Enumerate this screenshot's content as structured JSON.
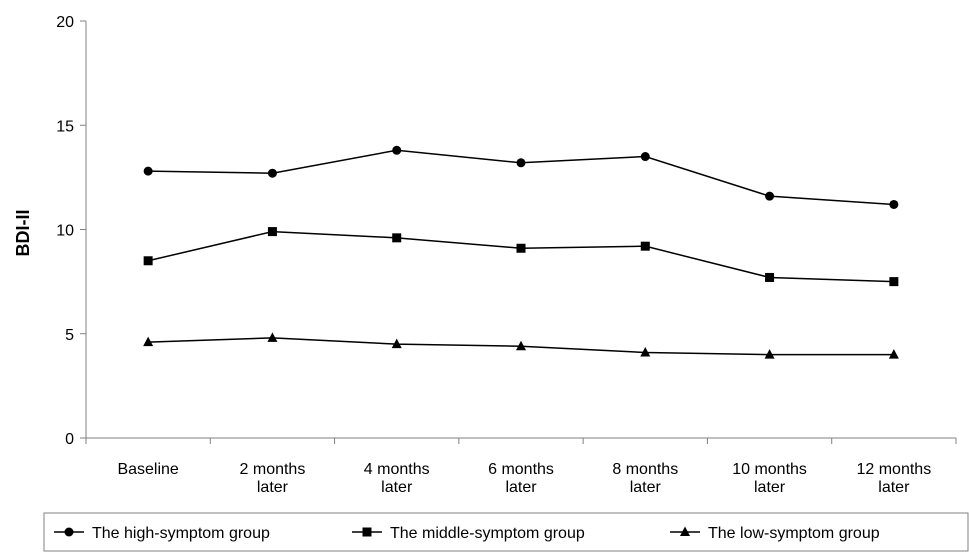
{
  "chart_data": {
    "type": "line",
    "title": "",
    "xlabel": "",
    "ylabel": "BDI-II",
    "ylim": [
      0,
      20
    ],
    "yticks": [
      "0",
      "5",
      "10",
      "15",
      "20"
    ],
    "categories": [
      [
        "Baseline"
      ],
      [
        "2 months",
        "later"
      ],
      [
        "4 months",
        "later"
      ],
      [
        "6 months",
        "later"
      ],
      [
        "8 months",
        "later"
      ],
      [
        "10 months",
        "later"
      ],
      [
        "12 months",
        "later"
      ]
    ],
    "grid": false,
    "legend_position": "bottom",
    "series": [
      {
        "name": "The high-symptom group",
        "marker": "circle",
        "values": [
          12.8,
          12.7,
          13.8,
          13.2,
          13.5,
          11.6,
          11.2
        ]
      },
      {
        "name": "The middle-symptom group",
        "marker": "square",
        "values": [
          8.5,
          9.9,
          9.6,
          9.1,
          9.2,
          7.7,
          7.5
        ]
      },
      {
        "name": "The low-symptom group",
        "marker": "triangle",
        "values": [
          4.6,
          4.8,
          4.5,
          4.4,
          4.1,
          4.0,
          4.0
        ]
      }
    ],
    "colors": {
      "line": "#000000",
      "axis": "#808080"
    }
  }
}
